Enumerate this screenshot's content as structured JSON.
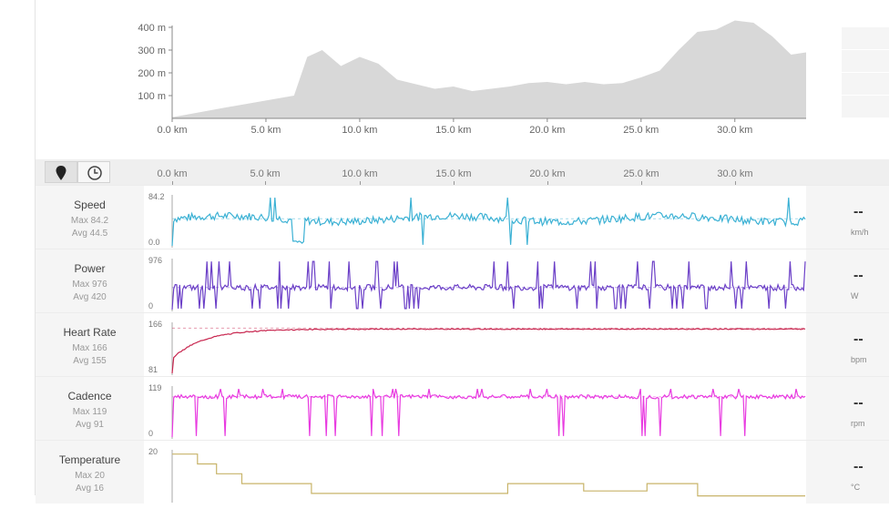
{
  "elevation": {
    "y_ticks": [
      "400 m",
      "300 m",
      "200 m",
      "100 m"
    ],
    "x_ticks": [
      "0.0 km",
      "5.0 km",
      "10.0 km",
      "15.0 km",
      "20.0 km",
      "25.0 km",
      "30.0 km"
    ],
    "side_values": [
      "--",
      "--",
      "--",
      "--"
    ],
    "fill_color": "#d8d8d8",
    "profile_km": [
      0,
      3,
      6.5,
      7.2,
      8,
      9,
      10,
      11,
      12,
      13,
      14,
      15,
      16,
      17,
      18,
      19,
      20,
      21,
      22,
      23,
      24,
      25,
      26,
      27,
      28,
      29,
      30,
      31,
      32,
      33,
      33.8
    ],
    "profile_m": [
      5,
      50,
      100,
      270,
      300,
      230,
      270,
      240,
      170,
      150,
      130,
      140,
      120,
      130,
      140,
      155,
      160,
      150,
      160,
      150,
      155,
      180,
      210,
      300,
      380,
      390,
      430,
      420,
      360,
      280,
      290
    ]
  },
  "distance_axis": {
    "labels": [
      "0.0 km",
      "5.0 km",
      "10.0 km",
      "15.0 km",
      "20.0 km",
      "25.0 km",
      "30.0 km"
    ],
    "toggles": [
      {
        "icon": "map-pin-icon"
      },
      {
        "icon": "clock-icon"
      }
    ]
  },
  "streams": [
    {
      "id": "speed",
      "name": "Speed",
      "max_label": "Max 84.2",
      "avg_label": "Avg 44.5",
      "y_max": "84.2",
      "y_min": "0.0",
      "current": "--",
      "unit": "km/h",
      "color": "#3bb1d4"
    },
    {
      "id": "power",
      "name": "Power",
      "max_label": "Max 976",
      "avg_label": "Avg 420",
      "y_max": "976",
      "y_min": "0",
      "current": "--",
      "unit": "W",
      "color": "#6b3fc7"
    },
    {
      "id": "heartrate",
      "name": "Heart Rate",
      "max_label": "Max 166",
      "avg_label": "Avg 155",
      "y_max": "166",
      "y_min": "81",
      "current": "--",
      "unit": "bpm",
      "color": "#c8264f"
    },
    {
      "id": "cadence",
      "name": "Cadence",
      "max_label": "Max 119",
      "avg_label": "Avg 91",
      "y_max": "119",
      "y_min": "0",
      "current": "--",
      "unit": "rpm",
      "color": "#e83ae0"
    },
    {
      "id": "temperature",
      "name": "Temperature",
      "max_label": "Max 20",
      "avg_label": "Avg 16",
      "y_max": "20",
      "y_min": "",
      "current": "--",
      "unit": "°C",
      "color": "#c8b46a"
    }
  ]
}
